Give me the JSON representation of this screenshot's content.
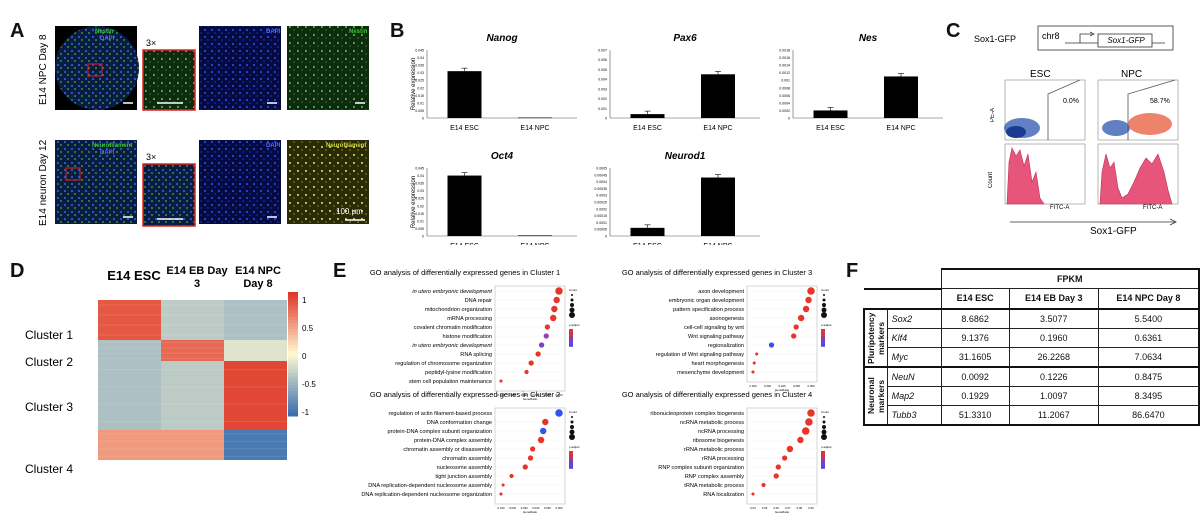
{
  "panels": {
    "a": "A",
    "b": "B",
    "c": "C",
    "d": "D",
    "e": "E",
    "f": "F"
  },
  "panel_a": {
    "row1_label": "E14 NPC Day 8",
    "row2_label": "E14 neuron Day 12",
    "zoom_label": "3×",
    "row1_channels": [
      "Nestin",
      "DAPI",
      "DAPI",
      "Nestin"
    ],
    "row2_channels": [
      "Neurofilament",
      "DAPI",
      "DAPI",
      "Neurofilament"
    ],
    "scale_bar": "100 μm",
    "colors": {
      "green": "#3fbf3a",
      "blue": "#1d3fd6",
      "yellow": "#d5d84a",
      "inset_box": "#e02020"
    }
  },
  "panel_b": {
    "ylabel": "Relative expression",
    "charts": [
      {
        "title": "Nanog",
        "categories": [
          "E14 ESC",
          "E14 NPC"
        ],
        "values": [
          0.031,
          0.0003
        ],
        "ylim": [
          0,
          0.045
        ],
        "ticks": [
          "0.045",
          "0.04",
          "0.035",
          "0.03",
          "0.025",
          "0.02",
          "0.015",
          "0.01",
          "0.005",
          "0"
        ]
      },
      {
        "title": "Pax6",
        "categories": [
          "E14 ESC",
          "E14 NPC"
        ],
        "values": [
          0.0004,
          0.0045
        ],
        "ylim": [
          0,
          0.007
        ],
        "ticks": [
          "0.007",
          "0.006",
          "0.005",
          "0.004",
          "0.003",
          "0.002",
          "0.001",
          "0"
        ]
      },
      {
        "title": "Nes",
        "categories": [
          "E14 ESC",
          "E14 NPC"
        ],
        "values": [
          0.0002,
          0.0011
        ],
        "ylim": [
          0,
          0.0018
        ],
        "ticks": [
          "0.0018",
          "0.0016",
          "0.0014",
          "0.0012",
          "0.001",
          "0.0008",
          "0.0006",
          "0.0004",
          "0.0002",
          "0"
        ]
      },
      {
        "title": "Oct4",
        "categories": [
          "E14 ESC",
          "E14 NPC"
        ],
        "values": [
          0.04,
          0.0004
        ],
        "ylim": [
          0,
          0.045
        ],
        "ticks": [
          "0.045",
          "0.04",
          "0.035",
          "0.03",
          "0.025",
          "0.02",
          "0.015",
          "0.01",
          "0.005",
          "0"
        ]
      },
      {
        "title": "Neurod1",
        "categories": [
          "E14 ESC",
          "E14 NPC"
        ],
        "values": [
          6e-05,
          0.00043
        ],
        "ylim": [
          0,
          0.0005
        ],
        "ticks": [
          "0.0005",
          "0.00045",
          "0.0004",
          "0.00035",
          "0.0003",
          "0.00025",
          "0.0002",
          "0.00015",
          "0.0001",
          "0.00005",
          "0"
        ]
      }
    ]
  },
  "panel_c": {
    "construct": "Sox1-GFP",
    "chrom": "chr8",
    "gene_box": "Sox1-GFP",
    "esc": "ESC",
    "npc": "NPC",
    "esc_pct": "0.0%",
    "npc_pct": "58.7%",
    "pe_axis": "PE-A",
    "fitc_axis": "FITC-A",
    "count_axis": "Count",
    "bottom_label": "Sox1-GFP",
    "colors": {
      "esc_dots": "#2c55b0",
      "npc_dots": "#e85a3a",
      "hist": "#e8557a"
    }
  },
  "panel_d": {
    "columns": [
      "E14 ESC",
      "E14 EB Day 3",
      "E14 NPC Day 8"
    ],
    "clusters": [
      "Cluster 1",
      "Cluster 2",
      "Cluster 3",
      "Cluster 4"
    ],
    "colorbar_ticks": [
      "1",
      "0.5",
      "0",
      "-0.5",
      "-1"
    ],
    "chart_data": {
      "type": "heatmap",
      "rows": [
        "Cluster 1",
        "Cluster 2",
        "Cluster 3",
        "Cluster 4"
      ],
      "columns": [
        "E14 ESC",
        "E14 EB Day 3",
        "E14 NPC Day 8"
      ],
      "values": [
        [
          1.0,
          -0.4,
          -0.5
        ],
        [
          -0.5,
          0.9,
          -0.2
        ],
        [
          -0.5,
          -0.4,
          1.1
        ],
        [
          0.6,
          0.6,
          -1.1
        ]
      ],
      "zlim": [
        -1.2,
        1.2
      ]
    }
  },
  "panel_e": {
    "xlabel": "GeneRatio",
    "legend_count": "Count",
    "legend_padj": "p.adjust",
    "plots": [
      {
        "title": "GO analysis of differentially expressed genes in Cluster 1",
        "terms": [
          "in utero embryonic development",
          "DNA repair",
          "mitochondrion organization",
          "mRNA processing",
          "covalent chromatin modification",
          "histone modification",
          "in utero embryonic development",
          "RNA splicing",
          "regulation of chromosome organization",
          "peptidyl-lysine modification",
          "stem cell population maintenance"
        ],
        "italic_first": true,
        "ratio": [
          0.062,
          0.06,
          0.058,
          0.057,
          0.052,
          0.051,
          0.047,
          0.044,
          0.038,
          0.034,
          0.012
        ],
        "color": [
          "#e8352a",
          "#e8352a",
          "#e8352a",
          "#e8352a",
          "#e8352a",
          "#9a40b0",
          "#7a40b8",
          "#e8352a",
          "#e8352a",
          "#e8352a",
          "#e8352a"
        ],
        "count": [
          5,
          4,
          4,
          4,
          3,
          3,
          3,
          3,
          3,
          2,
          1
        ],
        "xticks": [
          "0.010",
          "0.020",
          "0.030",
          "0.040",
          "0.050",
          "0.060"
        ]
      },
      {
        "title": "GO analysis of differentially expressed genes in Cluster 3",
        "terms": [
          "axon development",
          "embryonic organ development",
          "pattern specification process",
          "axonogenesis",
          "cell-cell signaling by wnt",
          "Wnt signaling pathway",
          "regionalization",
          "regulation of Wnt signaling pathway",
          "heart morphogenesis",
          "mesenchyme development"
        ],
        "italic_first": false,
        "ratio": [
          0.058,
          0.056,
          0.054,
          0.05,
          0.046,
          0.044,
          0.026,
          0.014,
          0.012,
          0.011
        ],
        "color": [
          "#e8352a",
          "#e8352a",
          "#e8352a",
          "#e8352a",
          "#e8352a",
          "#e8352a",
          "#3355ee",
          "#e8352a",
          "#e8352a",
          "#e8352a"
        ],
        "count": [
          5,
          4,
          4,
          4,
          3,
          3,
          3,
          1,
          1,
          1
        ],
        "xticks": [
          "0.020",
          "0.030",
          "0.040",
          "0.050",
          "0.060"
        ]
      },
      {
        "title": "GO analysis of differentially expressed genes in Cluster 2",
        "terms": [
          "regulation of actin filament-based process",
          "DNA conformation change",
          "protein-DNA complex subunit organization",
          "protein-DNA complex assembly",
          "chromatin assembly or disassembly",
          "chromatin assembly",
          "nucleosome assembly",
          "tight junction assembly",
          "DNA replication-dependent nucleosome assembly",
          "DNA replication-dependent nucleosome organization"
        ],
        "italic_first": false,
        "ratio": [
          0.075,
          0.062,
          0.06,
          0.058,
          0.05,
          0.048,
          0.043,
          0.03,
          0.022,
          0.02
        ],
        "color": [
          "#3355ee",
          "#e8352a",
          "#3355ee",
          "#e8352a",
          "#e8352a",
          "#e8352a",
          "#e8352a",
          "#e8352a",
          "#e8352a",
          "#e8352a"
        ],
        "count": [
          5,
          4,
          4,
          4,
          3,
          3,
          3,
          2,
          1,
          1
        ],
        "xticks": [
          "0.010",
          "0.020",
          "0.030",
          "0.040",
          "0.050",
          "0.060"
        ]
      },
      {
        "title": "GO analysis of differentially expressed genes in Cluster 4",
        "terms": [
          "ribonucleoprotein complex biogenesis",
          "ncRNA metabolic process",
          "ncRNA processing",
          "ribosome biogenesis",
          "rRNA metabolic process",
          "rRNA processing",
          "RNP complex subunit organization",
          "RNP complex assembly",
          "tRNA metabolic process",
          "RNA localization"
        ],
        "italic_first": false,
        "ratio": [
          0.095,
          0.093,
          0.09,
          0.085,
          0.075,
          0.07,
          0.064,
          0.062,
          0.05,
          0.04
        ],
        "color": [
          "#e8352a",
          "#e8352a",
          "#e8352a",
          "#e8352a",
          "#e8352a",
          "#e8352a",
          "#e8352a",
          "#e8352a",
          "#e8352a",
          "#e8352a"
        ],
        "count": [
          5,
          5,
          5,
          4,
          4,
          3,
          3,
          3,
          2,
          1
        ],
        "xticks": [
          "0.04",
          "0.05",
          "0.06",
          "0.07",
          "0.08",
          "0.09"
        ]
      }
    ]
  },
  "panel_f": {
    "header_group": "FPKM",
    "columns": [
      "E14 ESC",
      "E14 EB Day 3",
      "E14 NPC Day 8"
    ],
    "groups": [
      {
        "label": "Pluripotency markers",
        "rows": [
          {
            "gene": "Sox2",
            "vals": [
              "8.6862",
              "3.5077",
              "5.5400"
            ]
          },
          {
            "gene": "Klf4",
            "vals": [
              "9.1376",
              "0.1960",
              "0.6361"
            ]
          },
          {
            "gene": "Myc",
            "vals": [
              "31.1605",
              "26.2268",
              "7.0634"
            ]
          }
        ]
      },
      {
        "label": "Neuronal markers",
        "rows": [
          {
            "gene": "NeuN",
            "vals": [
              "0.0092",
              "0.1226",
              "0.8475"
            ]
          },
          {
            "gene": "Map2",
            "vals": [
              "0.1929",
              "1.0097",
              "8.3495"
            ]
          },
          {
            "gene": "Tubb3",
            "vals": [
              "51.3310",
              "11.2067",
              "86.6470"
            ]
          }
        ]
      }
    ]
  }
}
